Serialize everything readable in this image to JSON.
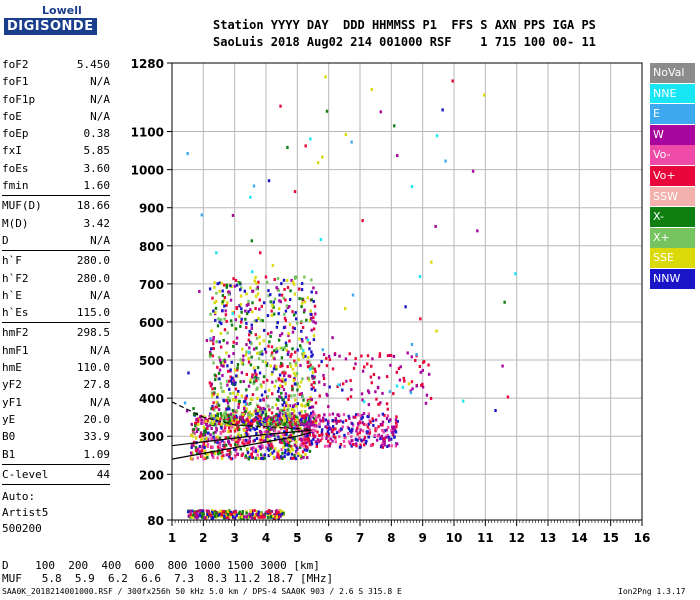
{
  "logo": {
    "line1": "Lowell",
    "line2": "DIGISONDE"
  },
  "header": {
    "line1": "Station YYYY DAY  DDD HHMMSS P1  FFS S AXN PPS IGA PS",
    "line2": "SaoLuis 2018 Aug02 214 001000 RSF    1 715 100 00- 11"
  },
  "params": {
    "g1": [
      {
        "name": "foF2",
        "value": "5.450"
      },
      {
        "name": "foF1",
        "value": "N/A"
      },
      {
        "name": "foF1p",
        "value": "N/A"
      },
      {
        "name": "foE",
        "value": "N/A"
      },
      {
        "name": "foEp",
        "value": "0.38"
      },
      {
        "name": "fxI",
        "value": "5.85"
      },
      {
        "name": "foEs",
        "value": "3.60"
      },
      {
        "name": "fmin",
        "value": "1.60"
      }
    ],
    "g2": [
      {
        "name": "MUF(D)",
        "value": "18.66"
      },
      {
        "name": "M(D)",
        "value": "3.42"
      },
      {
        "name": "D",
        "value": "N/A"
      }
    ],
    "g3": [
      {
        "name": "h`F",
        "value": "280.0"
      },
      {
        "name": "h`F2",
        "value": "280.0"
      },
      {
        "name": "h`E",
        "value": "N/A"
      },
      {
        "name": "h`Es",
        "value": "115.0"
      }
    ],
    "g4": [
      {
        "name": "hmF2",
        "value": "298.5"
      },
      {
        "name": "hmF1",
        "value": "N/A"
      },
      {
        "name": "hmE",
        "value": "110.0"
      },
      {
        "name": "yF2",
        "value": "27.8"
      },
      {
        "name": "yF1",
        "value": "N/A"
      },
      {
        "name": "yE",
        "value": "20.0"
      },
      {
        "name": "B0",
        "value": "33.9"
      },
      {
        "name": "B1",
        "value": "1.09"
      }
    ],
    "g5": [
      {
        "name": "C-level",
        "value": "44"
      }
    ],
    "notes": [
      "Auto:",
      "Artist5",
      "500200"
    ]
  },
  "legend": [
    {
      "label": "NoVal",
      "color": "#8c8c8c"
    },
    {
      "label": "NNE",
      "color": "#19e6f5"
    },
    {
      "label": "E",
      "color": "#3ea9ef"
    },
    {
      "label": "W",
      "color": "#a8059f"
    },
    {
      "label": "Vo-",
      "color": "#f04aa8"
    },
    {
      "label": "Vo+",
      "color": "#e8063a"
    },
    {
      "label": "SSW",
      "color": "#f4b0ac"
    },
    {
      "label": "X-",
      "color": "#0f7f12"
    },
    {
      "label": "X+",
      "color": "#76c45f"
    },
    {
      "label": "SSE",
      "color": "#dada08"
    },
    {
      "label": "NNW",
      "color": "#1a16c8"
    }
  ],
  "footer": {
    "d_line": "D    100  200  400  600  800 1000 1500 3000 [km]",
    "muf_line": "MUF   5.8  5.9  6.2  6.6  7.3  8.3 11.2 18.7 [MHz]",
    "file_line": "SAA0K_2018214001000.RSF / 300fx256h 50 kHz 5.0 km / DPS-4 SAA0K 903 / 2.6 S 315.8 E",
    "version": "Ion2Png 1.3.17"
  },
  "chart_data": {
    "type": "scatter",
    "title": "",
    "xlabel": "",
    "ylabel": "",
    "xlim": [
      1,
      16
    ],
    "ylim": [
      80,
      1280
    ],
    "x_ticks": [
      1,
      2,
      3,
      4,
      5,
      6,
      7,
      8,
      9,
      10,
      11,
      12,
      13,
      14,
      15,
      16
    ],
    "y_ticks": [
      {
        "value": 80,
        "label": "80"
      },
      {
        "value": 200,
        "label": "200"
      },
      {
        "value": 300,
        "label": "300"
      },
      {
        "value": 400,
        "label": "400"
      },
      {
        "value": 500,
        "label": "500"
      },
      {
        "value": 600,
        "label": "600"
      },
      {
        "value": 700,
        "label": "700"
      },
      {
        "value": 800,
        "label": "800"
      },
      {
        "value": 900,
        "label": "900"
      },
      {
        "value": 1000,
        "label": "1000"
      },
      {
        "value": 1100,
        "label": "1100"
      },
      {
        "value": 1280,
        "label": "1280"
      }
    ],
    "grid": true,
    "scatter_regions": [
      {
        "name": "F-layer o-trace cluster",
        "x": [
          1.6,
          5.4
        ],
        "y": [
          240,
          360
        ],
        "colors": [
          "#e8063a",
          "#dada08",
          "#a8059f",
          "#1a16c8",
          "#0f7f12",
          "#f04aa8"
        ],
        "n": 700
      },
      {
        "name": "F-layer spread echoes",
        "x": [
          2.2,
          5.6
        ],
        "y": [
          330,
          720
        ],
        "colors": [
          "#dada08",
          "#76c45f",
          "#0f7f12",
          "#1a16c8",
          "#a8059f",
          "#e8063a"
        ],
        "n": 900
      },
      {
        "name": "x-trace cluster",
        "x": [
          5.2,
          8.2
        ],
        "y": [
          270,
          360
        ],
        "colors": [
          "#a8059f",
          "#f04aa8",
          "#e8063a",
          "#1a16c8"
        ],
        "n": 300
      },
      {
        "name": "upper x-echoes",
        "x": [
          5.6,
          9.3
        ],
        "y": [
          380,
          520
        ],
        "colors": [
          "#a8059f",
          "#e8063a"
        ],
        "n": 90
      },
      {
        "name": "Es trace",
        "x": [
          1.5,
          4.6
        ],
        "y": [
          85,
          105
        ],
        "colors": [
          "#0f7f12",
          "#1a16c8",
          "#a8059f",
          "#e8063a",
          "#dada08"
        ],
        "n": 260
      },
      {
        "name": "sparse high echoes",
        "x": [
          1.3,
          12
        ],
        "y": [
          360,
          1270
        ],
        "colors": [
          "#dada08",
          "#19e6f5",
          "#3ea9ef",
          "#1a16c8",
          "#0f7f12",
          "#a8059f",
          "#e8063a"
        ],
        "n": 90
      }
    ],
    "profile_curves": [
      {
        "name": "electron density profile (dashed)",
        "style": "dashed",
        "x": [
          1.0,
          2.0,
          3.0,
          4.0,
          5.0,
          5.45
        ],
        "y": [
          390,
          350,
          330,
          325,
          320,
          318
        ]
      },
      {
        "name": "trace fit lower",
        "style": "solid",
        "x": [
          1.0,
          2.0,
          3.0,
          4.0,
          5.0,
          5.45
        ],
        "y": [
          240,
          255,
          270,
          285,
          300,
          310
        ]
      },
      {
        "name": "trace fit upper",
        "style": "solid",
        "x": [
          1.0,
          2.0,
          3.0,
          4.0,
          5.0,
          5.45
        ],
        "y": [
          275,
          285,
          295,
          305,
          312,
          316
        ]
      }
    ]
  }
}
